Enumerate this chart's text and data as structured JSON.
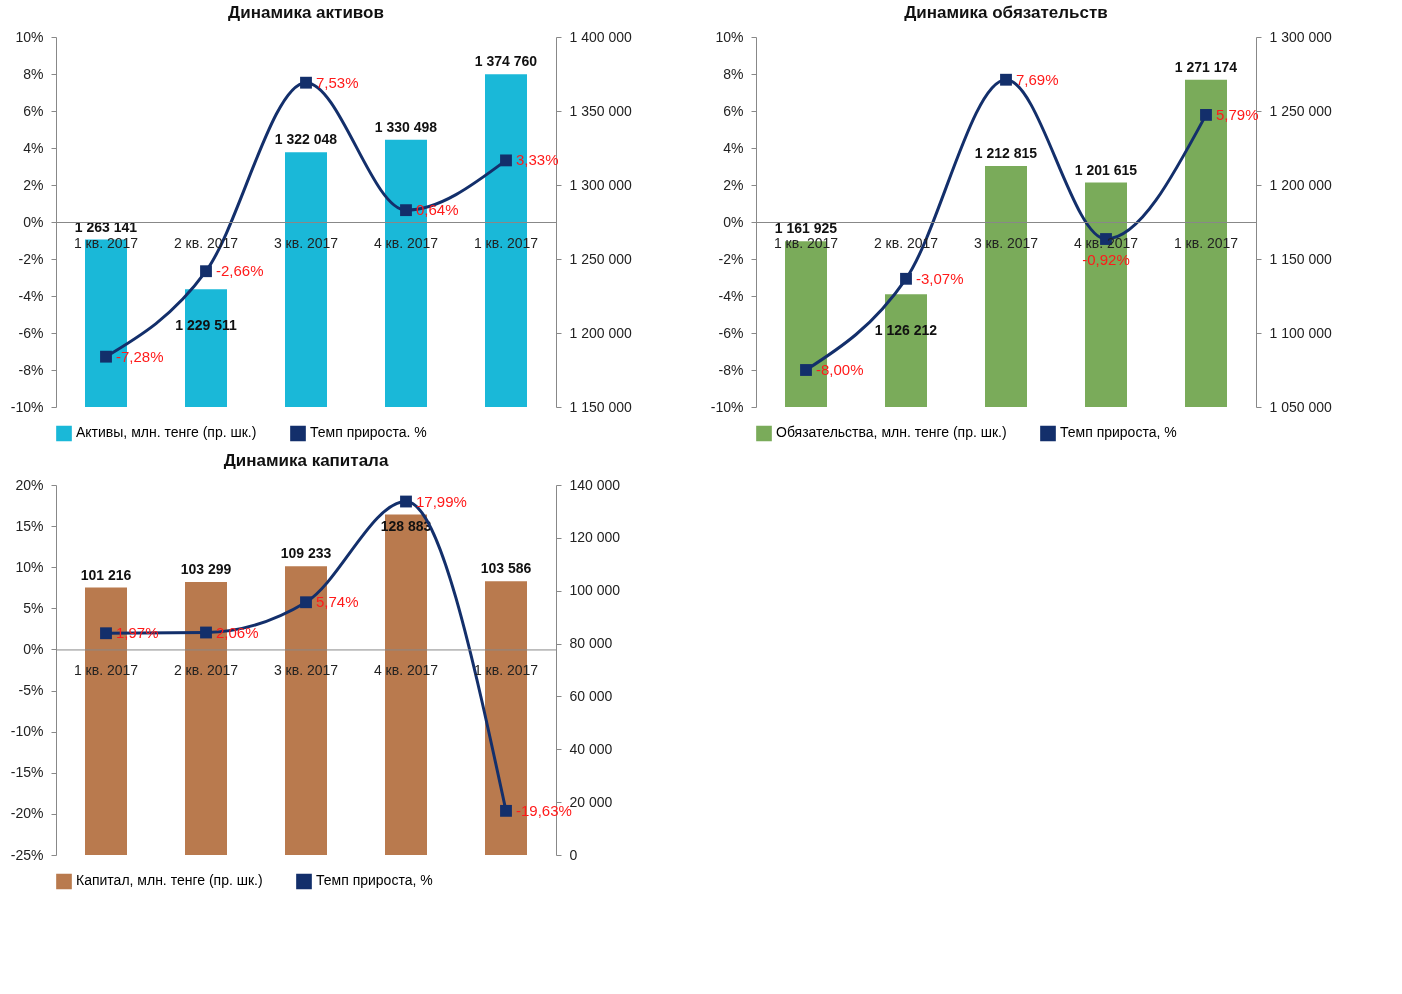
{
  "chart_data": [
    {
      "type": "bar",
      "title": "Динамика активов",
      "categories": [
        "1 кв. 2017",
        "2 кв. 2017",
        "3 кв. 2017",
        "4 кв. 2017",
        "1 кв. 2017"
      ],
      "series": [
        {
          "name": "Активы, млн. тенге (пр. шк.)",
          "type": "bar",
          "axis": "y2",
          "color": "#1ab8d8",
          "values": [
            1263141,
            1229511,
            1322048,
            1330498,
            1374760
          ],
          "value_labels": [
            "1 263 141",
            "1 229 511",
            "1 322 048",
            "1 330 498",
            "1 374 760"
          ]
        },
        {
          "name": "Темп прироста. %",
          "type": "line",
          "color": "#132f6b",
          "values": [
            -7.28,
            -2.66,
            7.53,
            0.64,
            3.33
          ],
          "value_labels": [
            "-7,28%",
            "-2,66%",
            "7,53%",
            "0,64%",
            "3,33%"
          ]
        }
      ],
      "ylim": [
        -10,
        10
      ],
      "yticks": [
        {
          "value": -10,
          "label": "-10%"
        },
        {
          "value": -8,
          "label": "-8%"
        },
        {
          "value": -6,
          "label": "-6%"
        },
        {
          "value": -4,
          "label": "-4%"
        },
        {
          "value": -2,
          "label": "-2%"
        },
        {
          "value": 0,
          "label": "0%"
        },
        {
          "value": 2,
          "label": "2%"
        },
        {
          "value": 4,
          "label": "4%"
        },
        {
          "value": 6,
          "label": "6%"
        },
        {
          "value": 8,
          "label": "8%"
        },
        {
          "value": 10,
          "label": "10%"
        }
      ],
      "y2lim": [
        1150000,
        1400000
      ],
      "y2ticks": [
        {
          "value": 1150000,
          "label": "1 150 000"
        },
        {
          "value": 1200000,
          "label": "1 200 000"
        },
        {
          "value": 1250000,
          "label": "1 250 000"
        },
        {
          "value": 1300000,
          "label": "1 300 000"
        },
        {
          "value": 1350000,
          "label": "1 350 000"
        },
        {
          "value": 1400000,
          "label": "1 400 000"
        }
      ],
      "legend": "bottom",
      "marker": "square",
      "line_style": "solid",
      "grid": false
    },
    {
      "type": "bar",
      "title": "Динамика обязательств",
      "categories": [
        "1 кв. 2017",
        "2 кв. 2017",
        "3 кв. 2017",
        "4 кв. 2017",
        "1 кв. 2017"
      ],
      "series": [
        {
          "name": "Обязательства, млн. тенге (пр. шк.)",
          "type": "bar",
          "axis": "y2",
          "color": "#7aab5a",
          "values": [
            1161925,
            1126212,
            1212815,
            1201615,
            1271174
          ],
          "value_labels": [
            "1 161 925",
            "1 126 212",
            "1 212 815",
            "1 201 615",
            "1 271 174"
          ]
        },
        {
          "name": "Темп прироста, %",
          "type": "line",
          "color": "#132f6b",
          "values": [
            -8.0,
            -3.07,
            7.69,
            -0.92,
            5.79
          ],
          "value_labels": [
            "-8,00%",
            "-3,07%",
            "7,69%",
            "-0,92%",
            "5,79%"
          ]
        }
      ],
      "ylim": [
        -10,
        10
      ],
      "yticks": [
        {
          "value": -10,
          "label": "-10%"
        },
        {
          "value": -8,
          "label": "-8%"
        },
        {
          "value": -6,
          "label": "-6%"
        },
        {
          "value": -4,
          "label": "-4%"
        },
        {
          "value": -2,
          "label": "-2%"
        },
        {
          "value": 0,
          "label": "0%"
        },
        {
          "value": 2,
          "label": "2%"
        },
        {
          "value": 4,
          "label": "4%"
        },
        {
          "value": 6,
          "label": "6%"
        },
        {
          "value": 8,
          "label": "8%"
        },
        {
          "value": 10,
          "label": "10%"
        }
      ],
      "y2lim": [
        1050000,
        1300000
      ],
      "y2ticks": [
        {
          "value": 1050000,
          "label": "1 050 000"
        },
        {
          "value": 1100000,
          "label": "1 100 000"
        },
        {
          "value": 1150000,
          "label": "1 150 000"
        },
        {
          "value": 1200000,
          "label": "1 200 000"
        },
        {
          "value": 1250000,
          "label": "1 250 000"
        },
        {
          "value": 1300000,
          "label": "1 300 000"
        }
      ],
      "legend": "bottom",
      "marker": "square",
      "line_style": "solid",
      "grid": false
    },
    {
      "type": "bar",
      "title": "Динамика капитала",
      "categories": [
        "1 кв. 2017",
        "2 кв. 2017",
        "3 кв. 2017",
        "4 кв. 2017",
        "1 кв. 2017"
      ],
      "series": [
        {
          "name": "Капитал, млн. тенге (пр. шк.)",
          "type": "bar",
          "axis": "y2",
          "color": "#b97a4e",
          "values": [
            101216,
            103299,
            109233,
            128883,
            103586
          ],
          "value_labels": [
            "101 216",
            "103 299",
            "109 233",
            "128 883",
            "103 586"
          ]
        },
        {
          "name": "Темп прироста, %",
          "type": "line",
          "color": "#132f6b",
          "values": [
            1.97,
            2.06,
            5.74,
            17.99,
            -19.63
          ],
          "value_labels": [
            "1,97%",
            "2,06%",
            "5,74%",
            "17,99%",
            "-19,63%"
          ]
        }
      ],
      "ylim": [
        -25,
        20
      ],
      "yticks": [
        {
          "value": -25,
          "label": "-25%"
        },
        {
          "value": -20,
          "label": "-20%"
        },
        {
          "value": -15,
          "label": "-15%"
        },
        {
          "value": -10,
          "label": "-10%"
        },
        {
          "value": -5,
          "label": "-5%"
        },
        {
          "value": 0,
          "label": "0%"
        },
        {
          "value": 5,
          "label": "5%"
        },
        {
          "value": 10,
          "label": "10%"
        },
        {
          "value": 15,
          "label": "15%"
        },
        {
          "value": 20,
          "label": "20%"
        }
      ],
      "y2lim": [
        0,
        140000
      ],
      "y2ticks": [
        0,
        {
          "value": 20000,
          "label": "20 000"
        },
        {
          "value": 40000,
          "label": "40 000"
        },
        {
          "value": 60000,
          "label": "60 000"
        },
        {
          "value": 80000,
          "label": "80 000"
        },
        {
          "value": 100000,
          "label": "100 000"
        },
        {
          "value": 120000,
          "label": "120 000"
        },
        {
          "value": 140000,
          "label": "140 000"
        }
      ],
      "legend": "bottom",
      "marker": "square",
      "line_style": "solid",
      "grid": false
    }
  ]
}
